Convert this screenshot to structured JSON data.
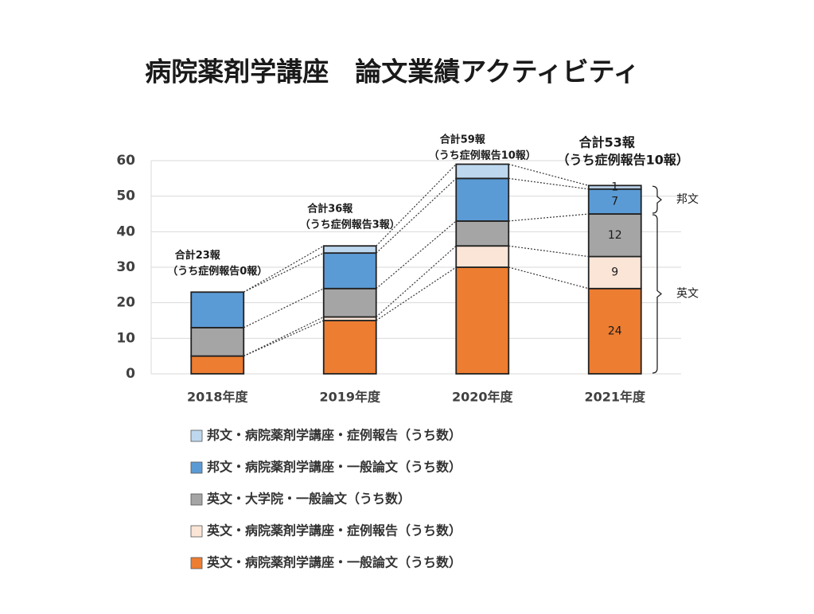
{
  "chart_data": {
    "type": "stacked_bar",
    "title": "病院薬剤学講座　論文業績アクティビティ",
    "categories": [
      "2018年度",
      "2019年度",
      "2020年度",
      "2021年度"
    ],
    "series": [
      {
        "name": "邦文・病院薬剤学講座・症例報告（うち数）",
        "color": "#bdd7ee",
        "values": [
          0,
          2,
          4,
          1
        ]
      },
      {
        "name": "邦文・病院薬剤学講座・一般論文（うち数）",
        "color": "#5b9bd5",
        "values": [
          10,
          10,
          12,
          7
        ]
      },
      {
        "name": "英文・大学院・一般論文（うち数）",
        "color": "#a5a5a5",
        "values": [
          8,
          8,
          7,
          12
        ]
      },
      {
        "name": "英文・病院薬剤学講座・症例報告（うち数）",
        "color": "#fbe5d6",
        "values": [
          0,
          1,
          6,
          9
        ]
      },
      {
        "name": "英文・病院薬剤学講座・一般論文（うち数）",
        "color": "#ed7d31",
        "values": [
          5,
          15,
          30,
          24
        ]
      }
    ],
    "annotations": [
      [
        "合計23報",
        "（うち症例報告0報）"
      ],
      [
        "合計36報",
        "（うち症例報告3報）"
      ],
      [
        "合計59報",
        "（うち症例報告10報）"
      ],
      [
        "合計53報",
        "（うち症例報告10報）"
      ]
    ],
    "data_labels_at": "2021年度",
    "brackets": [
      {
        "label": "邦文",
        "from": 45,
        "to": 53
      },
      {
        "label": "英文",
        "from": 0,
        "to": 45
      }
    ],
    "ylim": [
      0,
      60
    ],
    "yticks": [
      0,
      10,
      20,
      30,
      40,
      50,
      60
    ],
    "grid": true
  }
}
